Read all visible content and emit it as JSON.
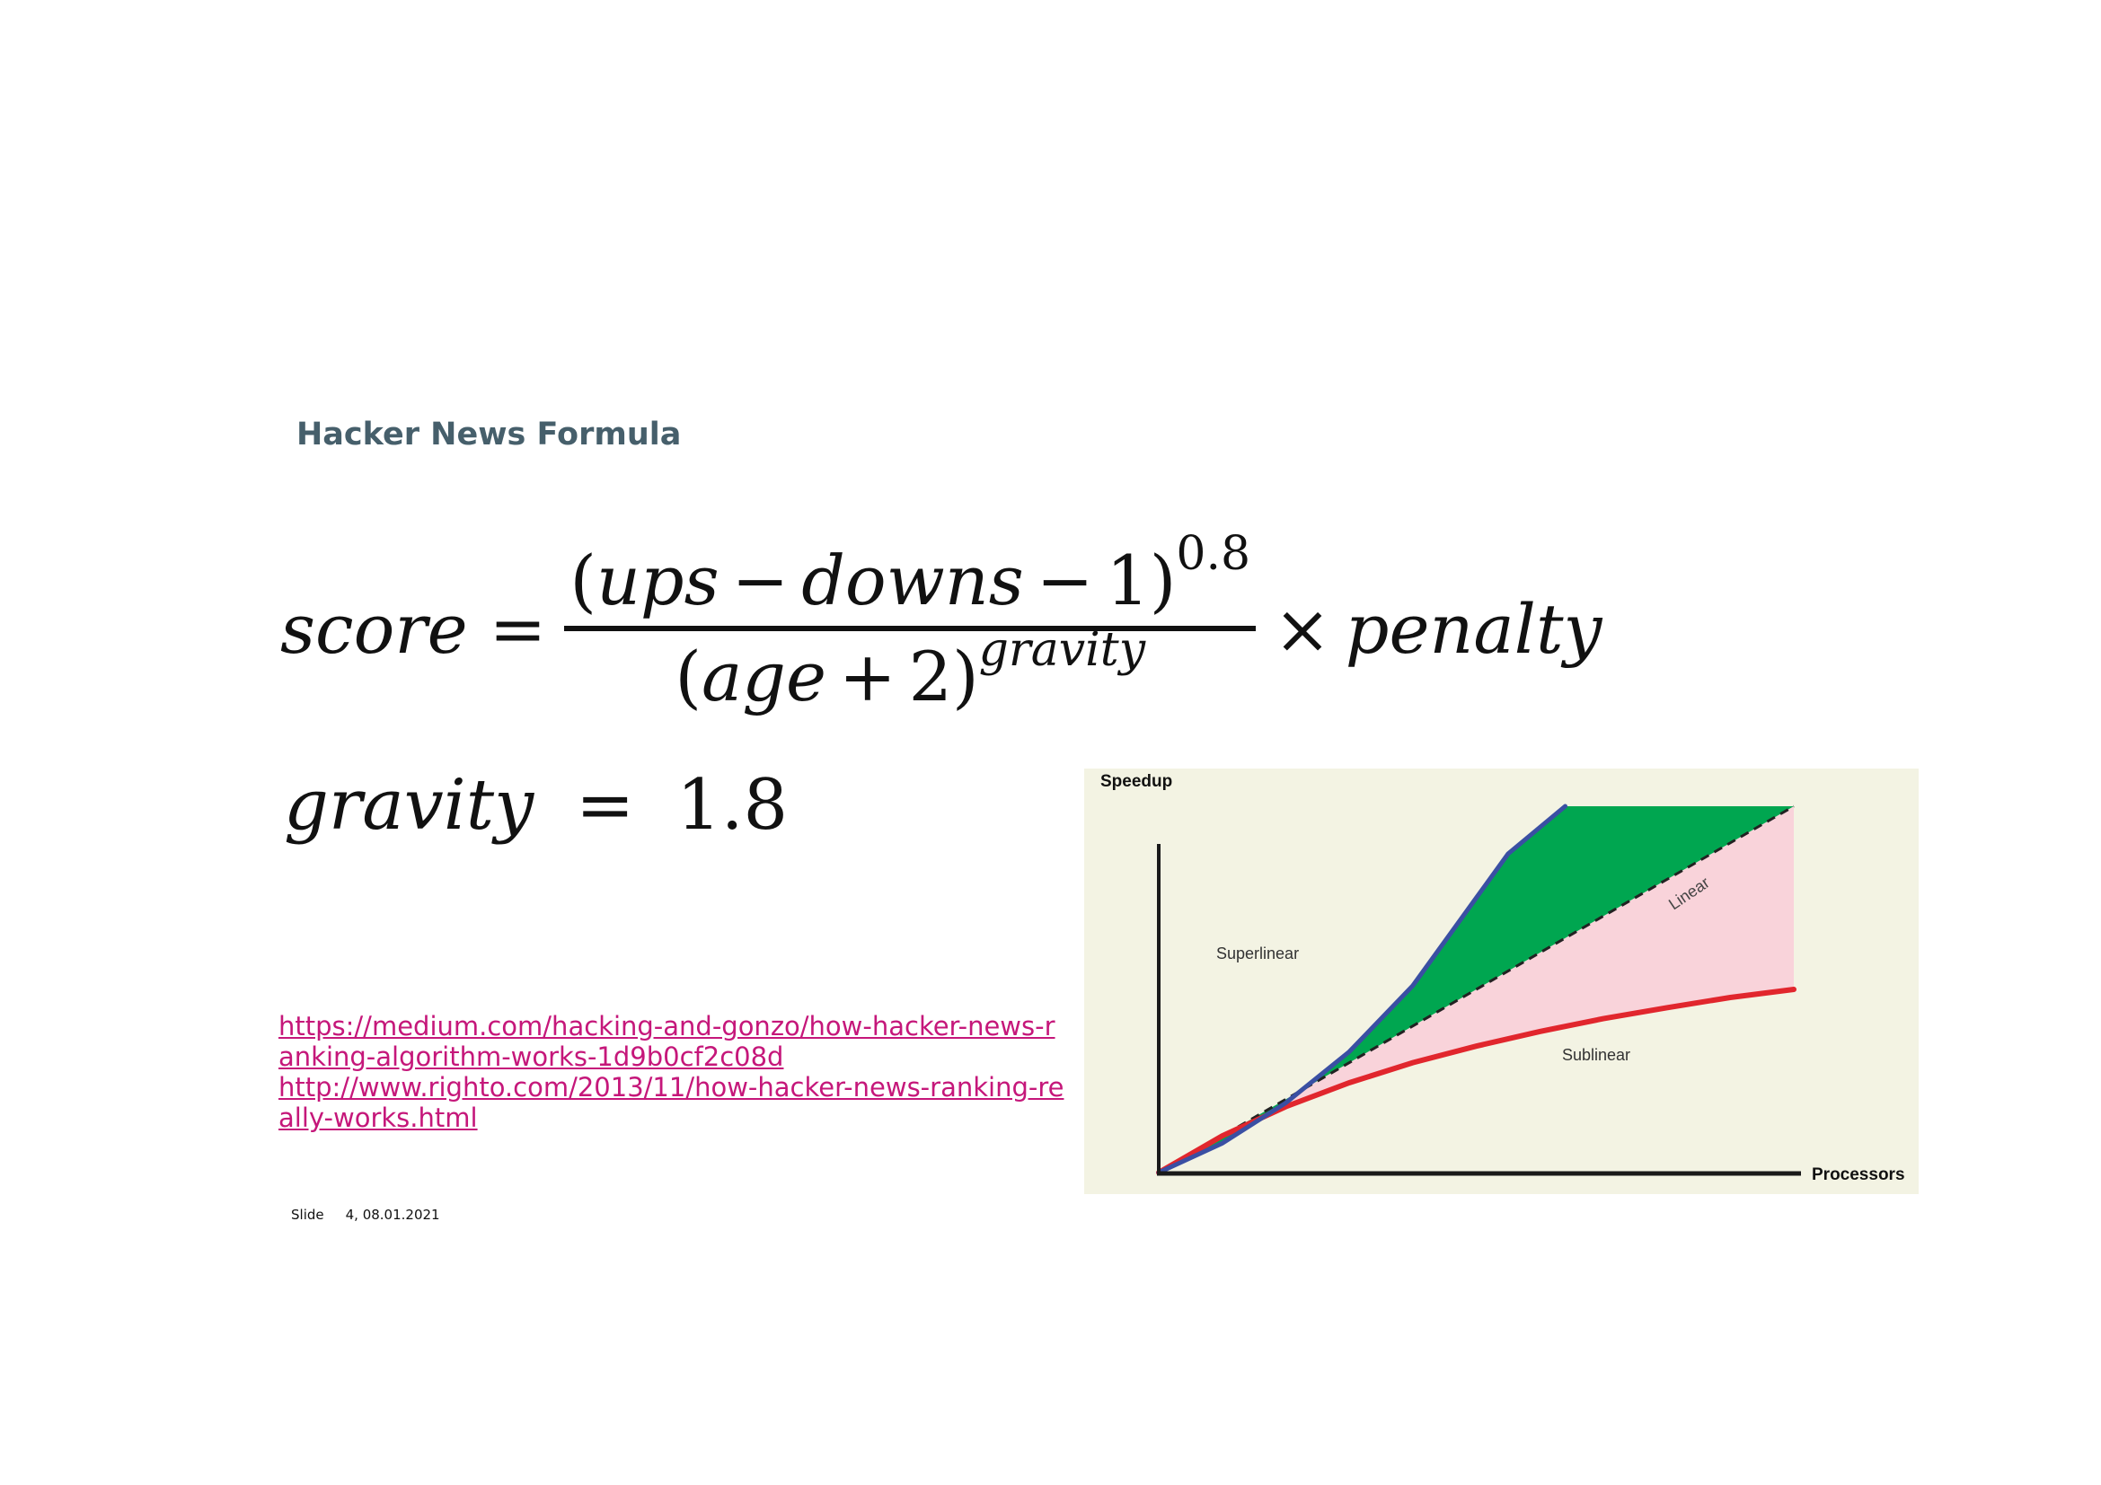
{
  "slide": {
    "title": "Hacker News Formula",
    "footer": {
      "label": "Slide",
      "number_date": "4, 08.01.2021"
    }
  },
  "formula": {
    "lhs": "score",
    "equals": "=",
    "numerator": {
      "open": "(",
      "ups": "ups",
      "minus1": "−",
      "downs": "downs",
      "minus2": "−",
      "one": "1",
      "close": ")",
      "exponent": "0.8"
    },
    "denominator": {
      "open": "(",
      "age": "age",
      "plus": "+",
      "two": "2",
      "close": ")",
      "exponent": "gravity"
    },
    "times": "×",
    "penalty": "penalty"
  },
  "gravity_def": {
    "lhs": "gravity",
    "equals": "=",
    "value": "1.8"
  },
  "links": [
    "https://medium.com/hacking-and-gonzo/how-hacker-news-ranking-algorithm-works-1d9b0cf2c08d",
    "http://www.righto.com/2013/11/how-hacker-news-ranking-really-works.html"
  ],
  "chart_data": {
    "type": "area",
    "ylabel": "Speedup",
    "xlabel": "Processors",
    "region_labels": [
      "Superlinear",
      "Linear",
      "Sublinear"
    ],
    "xlim": [
      0,
      1
    ],
    "ylim": [
      0,
      1
    ],
    "axis_ticks": false,
    "grid": false,
    "series": [
      {
        "name": "Superlinear",
        "x": [
          0,
          0.1,
          0.2,
          0.3,
          0.4,
          0.5,
          0.55,
          0.64
        ],
        "y": [
          0,
          0.08,
          0.19,
          0.33,
          0.51,
          0.75,
          0.87,
          1.0
        ]
      },
      {
        "name": "Linear",
        "x": [
          0,
          1
        ],
        "y": [
          0,
          1
        ]
      },
      {
        "name": "Sublinear",
        "x": [
          0,
          0.1,
          0.2,
          0.3,
          0.4,
          0.5,
          0.6,
          0.7,
          0.8,
          0.9,
          1.0
        ],
        "y": [
          0,
          0.1,
          0.18,
          0.245,
          0.3,
          0.345,
          0.385,
          0.42,
          0.45,
          0.478,
          0.5
        ]
      }
    ],
    "colors": {
      "background": "#f3f3e3",
      "superlinear_fill": "#00a650",
      "superlinear_line": "#3a4fa3",
      "sublinear_fill": "#f9d3da",
      "sublinear_line": "#e1262d",
      "axis": "#1a1a1a"
    }
  }
}
